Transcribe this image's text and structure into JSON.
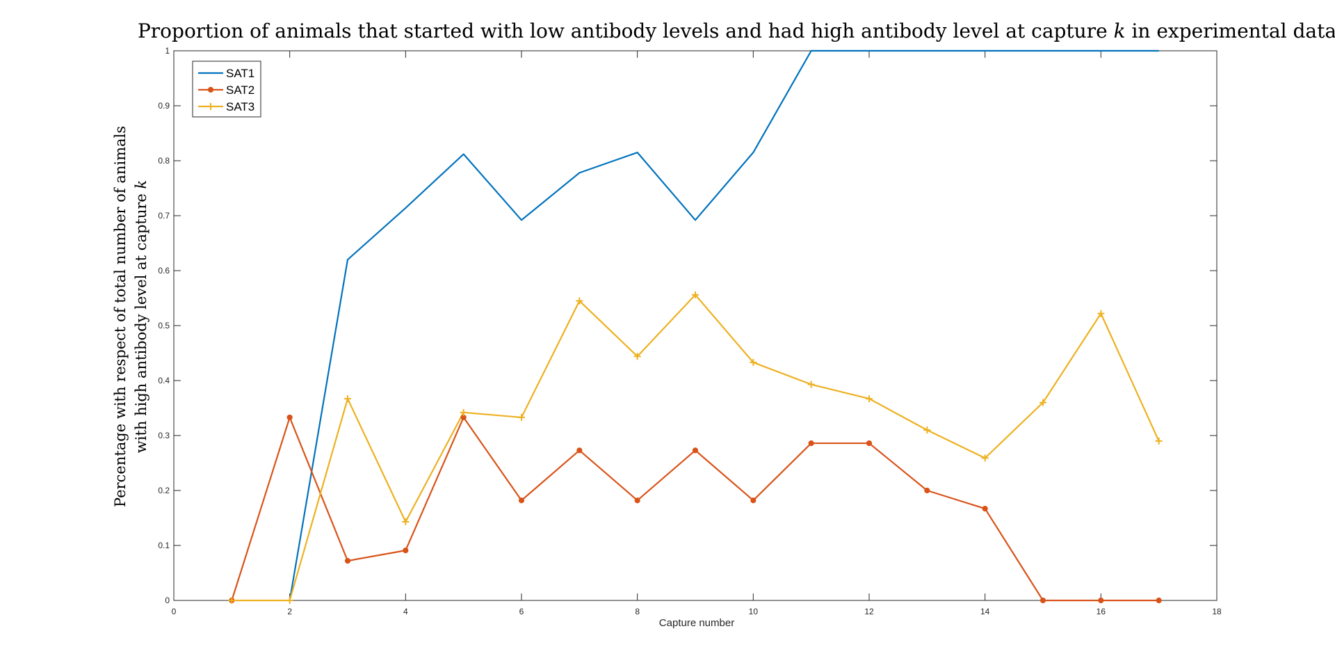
{
  "chart_data": {
    "type": "line",
    "title_parts": [
      "Proportion of animals that started with low antibody levels and had high antibody level at capture ",
      "k",
      " in experimental data"
    ],
    "ylabel_line1": "Percentage with respect of total number of animals",
    "ylabel_line2_parts": [
      "with high antibody level at capture ",
      "k"
    ],
    "xlabel": "Capture number",
    "xlim": [
      0,
      18
    ],
    "ylim": [
      0,
      1
    ],
    "xticks": [
      "0",
      "2",
      "4",
      "6",
      "8",
      "10",
      "12",
      "14",
      "16",
      "18"
    ],
    "yticks": [
      "0",
      "0.1",
      "0.2",
      "0.3",
      "0.4",
      "0.5",
      "0.6",
      "0.7",
      "0.8",
      "0.9",
      "1"
    ],
    "grid": false,
    "legend_position": "top-left",
    "x": [
      1,
      2,
      3,
      4,
      5,
      6,
      7,
      8,
      9,
      10,
      11,
      12,
      13,
      14,
      15,
      16,
      17
    ],
    "series": [
      {
        "name": "SAT1",
        "color": "#0072bd",
        "marker": "none",
        "x": [
          2,
          3,
          4,
          5,
          6,
          7,
          8,
          9,
          10,
          11,
          12,
          13,
          14,
          15,
          16,
          17
        ],
        "values": [
          0,
          0.62,
          0.714,
          0.812,
          0.692,
          0.778,
          0.815,
          0.692,
          0.815,
          1,
          1,
          1,
          1,
          1,
          1,
          1
        ]
      },
      {
        "name": "SAT2",
        "color": "#d95319",
        "marker": "circle",
        "x": [
          1,
          2,
          3,
          4,
          5,
          6,
          7,
          8,
          9,
          10,
          11,
          12,
          13,
          14,
          15,
          16,
          17
        ],
        "values": [
          0,
          0.333,
          0.072,
          0.091,
          0.333,
          0.182,
          0.273,
          0.182,
          0.273,
          0.182,
          0.286,
          0.286,
          0.2,
          0.167,
          0,
          0,
          0
        ]
      },
      {
        "name": "SAT3",
        "color": "#edb120",
        "marker": "plus",
        "x": [
          1,
          2,
          3,
          4,
          5,
          6,
          7,
          8,
          9,
          10,
          11,
          12,
          13,
          14,
          15,
          16,
          17
        ],
        "values": [
          0,
          0,
          0.367,
          0.143,
          0.342,
          0.333,
          0.545,
          0.444,
          0.556,
          0.433,
          0.393,
          0.367,
          0.31,
          0.259,
          0.36,
          0.522,
          0.29
        ]
      }
    ]
  }
}
